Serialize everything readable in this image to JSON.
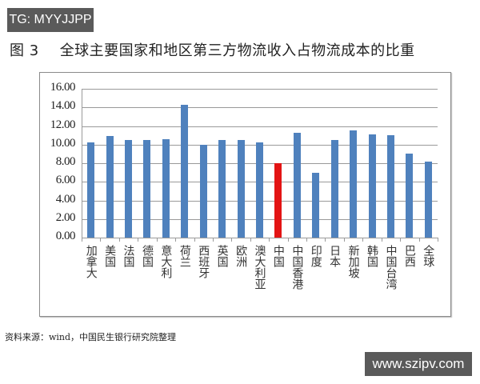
{
  "watermark_top": "TG: MYYJJPP",
  "watermark_bottom": "www.szipv.com",
  "figure": {
    "number": "图 3",
    "title": "全球主要国家和地区第三方物流收入占物流成本的比重"
  },
  "source": "资料来源：wind，中国民生银行研究院整理",
  "colors": {
    "default_bar": "#4f81bd",
    "highlight_bar": "#e31414",
    "grid": "#9a9a9a"
  },
  "chart_data": {
    "type": "bar",
    "title": "全球主要国家和地区第三方物流收入占物流成本的比重",
    "xlabel": "",
    "ylabel": "",
    "ylim": [
      0,
      16
    ],
    "yticks": [
      "0.00",
      "2.00",
      "4.00",
      "6.00",
      "8.00",
      "10.00",
      "12.00",
      "14.00",
      "16.00"
    ],
    "grid": true,
    "legend": null,
    "categories": [
      "加拿大",
      "美国",
      "法国",
      "德国",
      "意大利",
      "荷兰",
      "西班牙",
      "英国",
      "欧洲",
      "澳大利亚",
      "中国",
      "中国香港",
      "印度",
      "日本",
      "新加坡",
      "韩国",
      "中国台湾",
      "巴西",
      "全球"
    ],
    "values": [
      10.2,
      10.9,
      10.5,
      10.5,
      10.6,
      14.3,
      10.0,
      10.5,
      10.5,
      10.2,
      8.0,
      11.3,
      7.0,
      10.5,
      11.5,
      11.1,
      11.0,
      9.0,
      8.2
    ],
    "highlight": "中国"
  }
}
